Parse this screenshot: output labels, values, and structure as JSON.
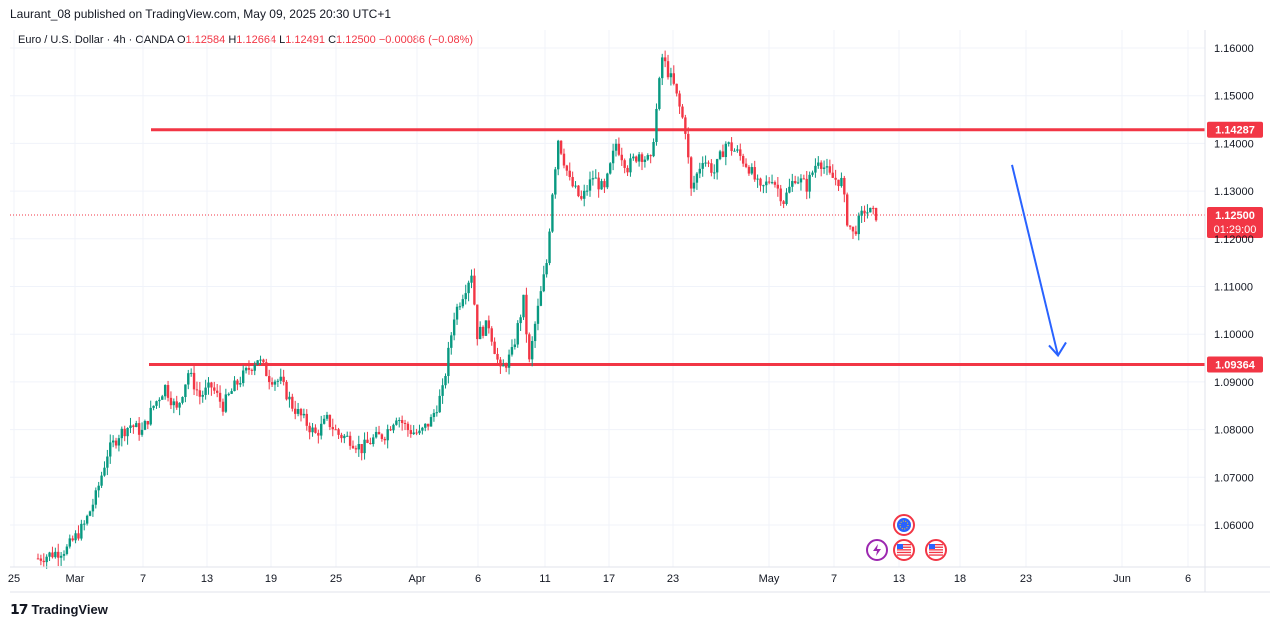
{
  "header": {
    "text": "Laurant_08 published on TradingView.com, May 09, 2025 20:30 UTC+1"
  },
  "legend": {
    "symbol": "Euro / U.S. Dollar · 4h · OANDA",
    "o_label": "O",
    "o_value": "1.12584",
    "h_label": "H",
    "h_value": "1.12664",
    "l_label": "L",
    "l_value": "1.12491",
    "c_label": "C",
    "c_value": "1.12500",
    "change": "−0.00086 (−0.08%)"
  },
  "footer": {
    "brand": "TradingView"
  },
  "colors": {
    "up": "#089981",
    "down": "#f23645",
    "level_line": "#f23645",
    "arrow": "#2962ff",
    "grid": "#f0f3fa"
  },
  "chart_data": {
    "type": "candlestick",
    "symbol": "EURUSD",
    "timeframe": "4h",
    "y_range": [
      1.0525,
      1.1635
    ],
    "y_ticks": [
      "1.16000",
      "1.15000",
      "1.14000",
      "1.13000",
      "1.12000",
      "1.11000",
      "1.10000",
      "1.09000",
      "1.08000",
      "1.07000",
      "1.06000"
    ],
    "x_ticks": [
      "25",
      "Mar",
      "7",
      "13",
      "19",
      "25",
      "Apr",
      "6",
      "11",
      "17",
      "23",
      "May",
      "7",
      "13",
      "18",
      "23",
      "Jun",
      "6"
    ],
    "horizontal_levels": [
      {
        "price": 1.14287,
        "label": "1.14287"
      },
      {
        "price": 1.09364,
        "label": "1.09364"
      }
    ],
    "current_price": {
      "price": 1.125,
      "label": "1.12500",
      "countdown": "01:29:00"
    },
    "arrow": {
      "from_price": 1.1355,
      "to_price": 1.0945,
      "direction": "down"
    },
    "event_icons": [
      "eu-flag-icon",
      "lightning-icon",
      "us-flag-icon",
      "us-flag-icon"
    ],
    "price_path": [
      [
        0,
        1.053
      ],
      [
        5,
        1.055
      ],
      [
        8,
        1.06
      ],
      [
        10,
        1.066
      ],
      [
        12,
        1.075
      ],
      [
        14,
        1.079
      ],
      [
        16,
        1.081
      ],
      [
        18,
        1.0795
      ],
      [
        20,
        1.085
      ],
      [
        22,
        1.089
      ],
      [
        24,
        1.084
      ],
      [
        26,
        1.092
      ],
      [
        28,
        1.087
      ],
      [
        30,
        1.089
      ],
      [
        32,
        1.085
      ],
      [
        34,
        1.089
      ],
      [
        36,
        1.092
      ],
      [
        38,
        1.095
      ],
      [
        40,
        1.091
      ],
      [
        42,
        1.09
      ],
      [
        44,
        1.085
      ],
      [
        46,
        1.082
      ],
      [
        48,
        1.079
      ],
      [
        50,
        1.082
      ],
      [
        52,
        1.079
      ],
      [
        54,
        1.078
      ],
      [
        56,
        1.076
      ],
      [
        58,
        1.078
      ],
      [
        60,
        1.079
      ],
      [
        62,
        1.083
      ],
      [
        64,
        1.08
      ],
      [
        66,
        1.079
      ],
      [
        68,
        1.082
      ],
      [
        70,
        1.088
      ],
      [
        72,
        1.104
      ],
      [
        74,
        1.11
      ],
      [
        75,
        1.113
      ],
      [
        76,
        1.1
      ],
      [
        78,
        1.102
      ],
      [
        80,
        1.092
      ],
      [
        82,
        1.096
      ],
      [
        84,
        1.107
      ],
      [
        85,
        1.094
      ],
      [
        86,
        1.102
      ],
      [
        88,
        1.115
      ],
      [
        89,
        1.13
      ],
      [
        90,
        1.141
      ],
      [
        92,
        1.132
      ],
      [
        94,
        1.128
      ],
      [
        96,
        1.133
      ],
      [
        98,
        1.13
      ],
      [
        100,
        1.14
      ],
      [
        102,
        1.135
      ],
      [
        104,
        1.138
      ],
      [
        106,
        1.136
      ],
      [
        108,
        1.158
      ],
      [
        110,
        1.152
      ],
      [
        112,
        1.143
      ],
      [
        113,
        1.13
      ],
      [
        115,
        1.137
      ],
      [
        117,
        1.134
      ],
      [
        119,
        1.14
      ],
      [
        121,
        1.138
      ],
      [
        123,
        1.135
      ],
      [
        125,
        1.13
      ],
      [
        127,
        1.133
      ],
      [
        129,
        1.128
      ],
      [
        131,
        1.133
      ],
      [
        133,
        1.131
      ],
      [
        135,
        1.137
      ],
      [
        137,
        1.133
      ],
      [
        139,
        1.132
      ],
      [
        140,
        1.124
      ],
      [
        141,
        1.121
      ],
      [
        143,
        1.126
      ],
      [
        145,
        1.125
      ]
    ]
  }
}
